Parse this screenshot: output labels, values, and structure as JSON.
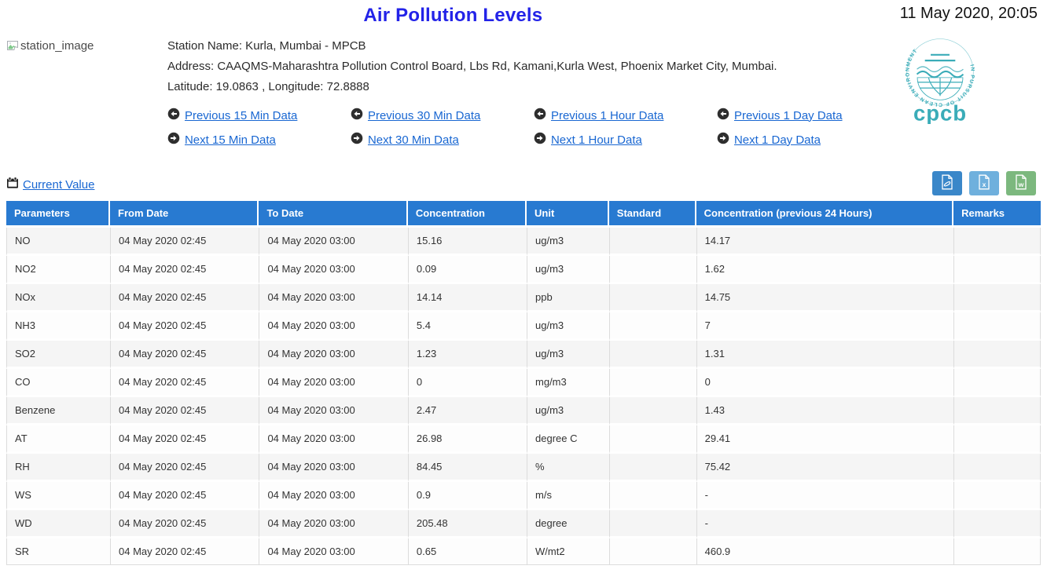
{
  "header": {
    "title": "Air Pollution Levels",
    "timestamp": "11 May 2020, 20:05"
  },
  "station": {
    "image_alt": "station_image",
    "name_line": "Station Name: Kurla, Mumbai - MPCB",
    "address_line": "Address: CAAQMS-Maharashtra Pollution Control Board, Lbs Rd, Kamani,Kurla West, Phoenix Market City, Mumbai.",
    "coords_line": "Latitude: 19.0863 , Longitude: 72.8888",
    "logo_motto": "IN PURSUIT OF CLEAN ENVIRONMENT",
    "logo_text": "cpcb"
  },
  "nav_links": [
    {
      "prev": "Previous 15 Min Data",
      "next": "Next 15 Min Data"
    },
    {
      "prev": "Previous 30 Min Data",
      "next": "Next 30 Min Data"
    },
    {
      "prev": "Previous 1 Hour Data",
      "next": "Next 1 Hour Data"
    },
    {
      "prev": "Previous 1 Day Data",
      "next": "Next 1 Day Data"
    }
  ],
  "toolbar": {
    "current_value_label": "Current Value",
    "export_buttons": [
      {
        "name": "export-pdf",
        "icon": "pdf-file-icon",
        "color": "#3a87c9"
      },
      {
        "name": "export-excel",
        "icon": "excel-file-icon",
        "color": "#6fb0dd"
      },
      {
        "name": "export-word",
        "icon": "word-file-icon",
        "color": "#7cb87e"
      }
    ]
  },
  "table": {
    "columns": [
      "Parameters",
      "From Date",
      "To Date",
      "Concentration",
      "Unit",
      "Standard",
      "Concentration (previous 24 Hours)",
      "Remarks"
    ],
    "rows": [
      [
        "NO",
        "04 May 2020 02:45",
        "04 May 2020 03:00",
        "15.16",
        "ug/m3",
        "",
        "14.17",
        ""
      ],
      [
        "NO2",
        "04 May 2020 02:45",
        "04 May 2020 03:00",
        "0.09",
        "ug/m3",
        "",
        "1.62",
        ""
      ],
      [
        "NOx",
        "04 May 2020 02:45",
        "04 May 2020 03:00",
        "14.14",
        "ppb",
        "",
        "14.75",
        ""
      ],
      [
        "NH3",
        "04 May 2020 02:45",
        "04 May 2020 03:00",
        "5.4",
        "ug/m3",
        "",
        "7",
        ""
      ],
      [
        "SO2",
        "04 May 2020 02:45",
        "04 May 2020 03:00",
        "1.23",
        "ug/m3",
        "",
        "1.31",
        ""
      ],
      [
        "CO",
        "04 May 2020 02:45",
        "04 May 2020 03:00",
        "0",
        "mg/m3",
        "",
        "0",
        ""
      ],
      [
        "Benzene",
        "04 May 2020 02:45",
        "04 May 2020 03:00",
        "2.47",
        "ug/m3",
        "",
        "1.43",
        ""
      ],
      [
        "AT",
        "04 May 2020 02:45",
        "04 May 2020 03:00",
        "26.98",
        "degree C",
        "",
        "29.41",
        ""
      ],
      [
        "RH",
        "04 May 2020 02:45",
        "04 May 2020 03:00",
        "84.45",
        "%",
        "",
        "75.42",
        ""
      ],
      [
        "WS",
        "04 May 2020 02:45",
        "04 May 2020 03:00",
        "0.9",
        "m/s",
        "",
        "-",
        ""
      ],
      [
        "WD",
        "04 May 2020 02:45",
        "04 May 2020 03:00",
        "205.48",
        "degree",
        "",
        "-",
        ""
      ],
      [
        "SR",
        "04 May 2020 02:45",
        "04 May 2020 03:00",
        "0.65",
        "W/mt2",
        "",
        "460.9",
        ""
      ]
    ]
  },
  "colors": {
    "title_blue": "#2323e8",
    "link_blue": "#1967d2",
    "table_header_bg": "#287ad1",
    "row_stripe": "#f5f5f5",
    "logo_teal": "#3aacb8",
    "pdf_button": "#3a87c9",
    "excel_button": "#6fb0dd",
    "word_button": "#7cb87e"
  }
}
